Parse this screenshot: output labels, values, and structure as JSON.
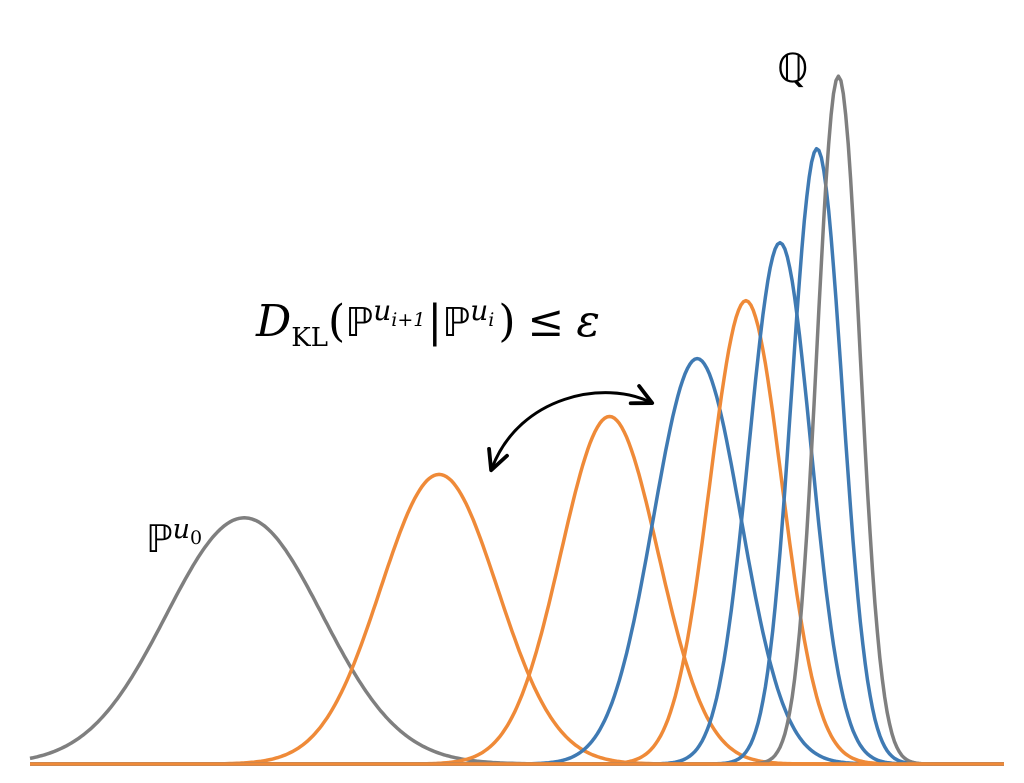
{
  "labels": {
    "start_symbol": "ℙ",
    "start_superscript": "u",
    "start_sub": "0",
    "target_symbol": "ℚ",
    "formula_D": "D",
    "formula_KL": "KL",
    "formula_open": "(",
    "formula_P1": "ℙ",
    "formula_u1": "u",
    "formula_i1": "i+1",
    "formula_bar": "|",
    "formula_P2": "ℙ",
    "formula_u2": "u",
    "formula_i2": "i",
    "formula_close": ")",
    "formula_leq": "≤",
    "formula_eps": "ε"
  },
  "colors": {
    "gray": "#7f7f7f",
    "orange": "#ef8a38",
    "blue": "#3f7ab3",
    "arrow": "#000000"
  },
  "distributions": [
    {
      "role": "start",
      "color": "gray",
      "mean": 0.22,
      "peak": 0.34,
      "sd": 0.08
    },
    {
      "role": "intermediate",
      "color": "orange",
      "mean": 0.42,
      "peak": 0.4,
      "sd": 0.06
    },
    {
      "role": "intermediate",
      "color": "orange",
      "mean": 0.595,
      "peak": 0.48,
      "sd": 0.05
    },
    {
      "role": "intermediate",
      "color": "blue",
      "mean": 0.685,
      "peak": 0.56,
      "sd": 0.045
    },
    {
      "role": "intermediate",
      "color": "orange",
      "mean": 0.735,
      "peak": 0.64,
      "sd": 0.037
    },
    {
      "role": "intermediate",
      "color": "blue",
      "mean": 0.77,
      "peak": 0.72,
      "sd": 0.032
    },
    {
      "role": "intermediate",
      "color": "blue",
      "mean": 0.808,
      "peak": 0.85,
      "sd": 0.026
    },
    {
      "role": "target",
      "color": "gray",
      "mean": 0.83,
      "peak": 0.95,
      "sd": 0.022
    }
  ]
}
